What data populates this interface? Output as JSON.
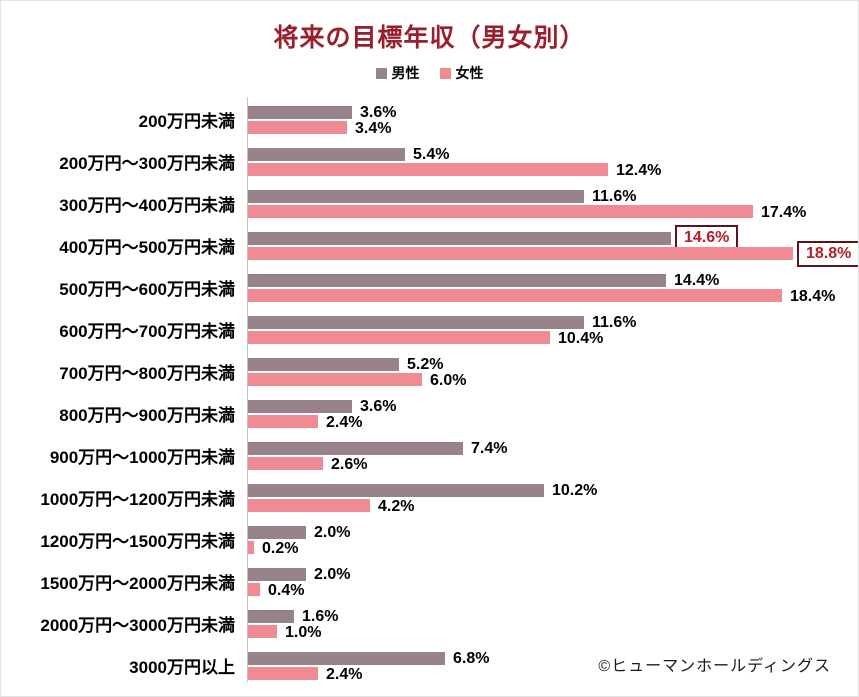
{
  "title": "将来の目標年収（男女別）",
  "legend": {
    "items": [
      {
        "label": "男性",
        "color": "#99838A"
      },
      {
        "label": "女性",
        "color": "#F08B94"
      }
    ]
  },
  "copyright": "©ヒューマンホールディングス",
  "colors": {
    "title_text": "#9B1E2D",
    "male_bar": "#99838A",
    "female_bar": "#F08B94",
    "axis_line": "#C6C6C6",
    "highlight_box_border": "#5E1322",
    "highlight_text": "#B42025",
    "label_text": "#000000"
  },
  "chart_data": {
    "type": "bar",
    "orientation": "horizontal",
    "title": "将来の目標年収（男女別）",
    "xlabel": "",
    "ylabel": "",
    "xlim": [
      0,
      20
    ],
    "grid": false,
    "legend_position": "top",
    "value_format": "{value}%",
    "categories": [
      "200万円未満",
      "200万円～300万円未満",
      "300万円～400万円未満",
      "400万円～500万円未満",
      "500万円～600万円未満",
      "600万円～700万円未満",
      "700万円～800万円未満",
      "800万円～900万円未満",
      "900万円～1000万円未満",
      "1000万円～1200万円未満",
      "1200万円～1500万円未満",
      "1500万円～2000万円未満",
      "2000万円～3000万円未満",
      "3000万円以上"
    ],
    "series": [
      {
        "name": "男性",
        "color": "#99838A",
        "values": [
          3.6,
          5.4,
          11.6,
          14.6,
          14.4,
          11.6,
          5.2,
          3.6,
          7.4,
          10.2,
          2.0,
          2.0,
          1.6,
          6.8
        ]
      },
      {
        "name": "女性",
        "color": "#F08B94",
        "values": [
          3.4,
          12.4,
          17.4,
          18.8,
          18.4,
          10.4,
          6.0,
          2.4,
          2.6,
          4.2,
          0.2,
          0.4,
          1.0,
          2.4
        ]
      }
    ],
    "highlight": {
      "category": "400万円～500万円未満",
      "category_index": 3,
      "style": "boxed-red-labels"
    }
  }
}
